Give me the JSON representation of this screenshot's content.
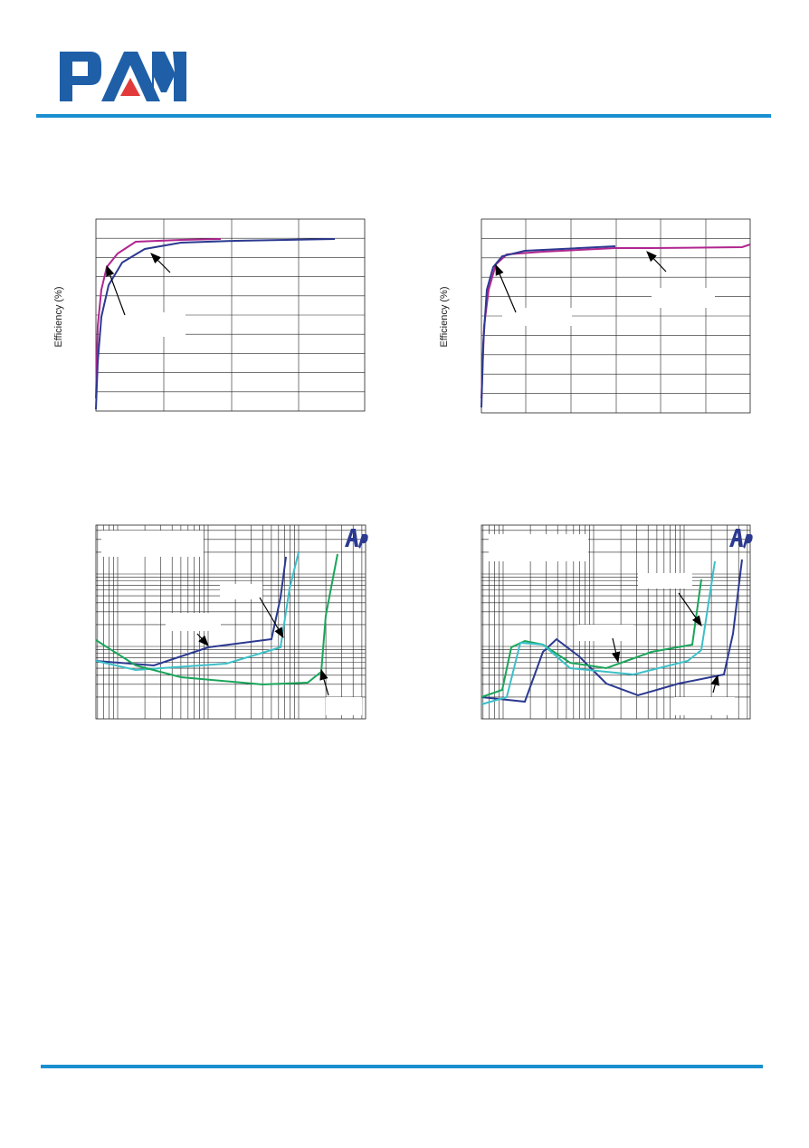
{
  "charts": [
    {
      "y_label": "Efficiency (%)"
    },
    {
      "y_label": "Efficiency (%)"
    }
  ]
}
